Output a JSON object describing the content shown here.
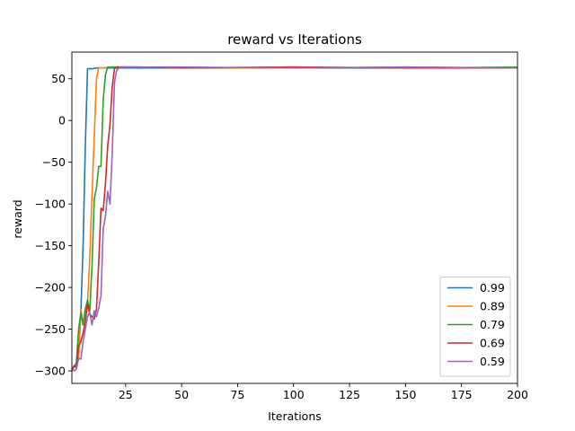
{
  "chart_data": {
    "type": "line",
    "title": "reward vs Iterations",
    "xlabel": "Iterations",
    "ylabel": "reward",
    "xlim": [
      1,
      200
    ],
    "ylim": [
      -315,
      82
    ],
    "xticks": [
      25,
      50,
      75,
      100,
      125,
      150,
      175,
      200
    ],
    "yticks": [
      -300,
      -250,
      -200,
      -150,
      -100,
      -50,
      0,
      50
    ],
    "grid": false,
    "legend_position": "lower-right",
    "series": [
      {
        "name": "0.99",
        "color": "#1f77b4",
        "x": [
          1,
          2,
          3,
          4,
          5,
          6,
          7,
          8,
          9,
          10,
          12,
          15,
          20,
          30,
          50,
          100,
          150,
          200
        ],
        "y": [
          -298,
          -294,
          -292,
          -280,
          -230,
          -150,
          -30,
          62,
          62,
          62,
          63,
          63,
          63,
          63,
          63,
          63,
          63,
          63
        ]
      },
      {
        "name": "0.89",
        "color": "#ff7f0e",
        "x": [
          1,
          2,
          3,
          4,
          5,
          6,
          7,
          8,
          9,
          10,
          11,
          12,
          13,
          14,
          15,
          20,
          30,
          50,
          100,
          150,
          200
        ],
        "y": [
          -300,
          -295,
          -293,
          -285,
          -226,
          -245,
          -225,
          -220,
          -165,
          -90,
          -20,
          50,
          63,
          63,
          63,
          64,
          64,
          63,
          63,
          64,
          63
        ]
      },
      {
        "name": "0.79",
        "color": "#2ca02c",
        "x": [
          1,
          2,
          3,
          4,
          5,
          6,
          7,
          8,
          9,
          10,
          11,
          12,
          13,
          14,
          15,
          16,
          17,
          18,
          20,
          30,
          50,
          100,
          150,
          200
        ],
        "y": [
          -298,
          -295,
          -290,
          -250,
          -230,
          -245,
          -226,
          -215,
          -228,
          -175,
          -95,
          -80,
          -55,
          -55,
          25,
          55,
          64,
          64,
          64,
          64,
          63,
          64,
          63,
          64
        ]
      },
      {
        "name": "0.69",
        "color": "#d62728",
        "x": [
          1,
          2,
          3,
          4,
          5,
          6,
          7,
          8,
          9,
          10,
          11,
          12,
          13,
          14,
          15,
          16,
          17,
          18,
          19,
          20,
          21,
          25,
          50,
          100,
          150,
          200
        ],
        "y": [
          -300,
          -294,
          -296,
          -270,
          -265,
          -255,
          -240,
          -220,
          -232,
          -235,
          -238,
          -226,
          -170,
          -105,
          -108,
          -75,
          -30,
          -5,
          40,
          62,
          64,
          64,
          63,
          64,
          63,
          63
        ]
      },
      {
        "name": "0.59",
        "color": "#9467bd",
        "x": [
          1,
          2,
          3,
          4,
          5,
          6,
          7,
          8,
          9,
          10,
          11,
          12,
          13,
          14,
          15,
          16,
          17,
          18,
          19,
          20,
          21,
          22,
          23,
          25,
          50,
          100,
          150,
          200
        ],
        "y": [
          -296,
          -300,
          -298,
          -285,
          -286,
          -265,
          -250,
          -235,
          -230,
          -245,
          -228,
          -235,
          -225,
          -210,
          -130,
          -115,
          -85,
          -100,
          -40,
          45,
          60,
          63,
          64,
          64,
          64,
          63,
          64,
          63
        ]
      }
    ]
  }
}
